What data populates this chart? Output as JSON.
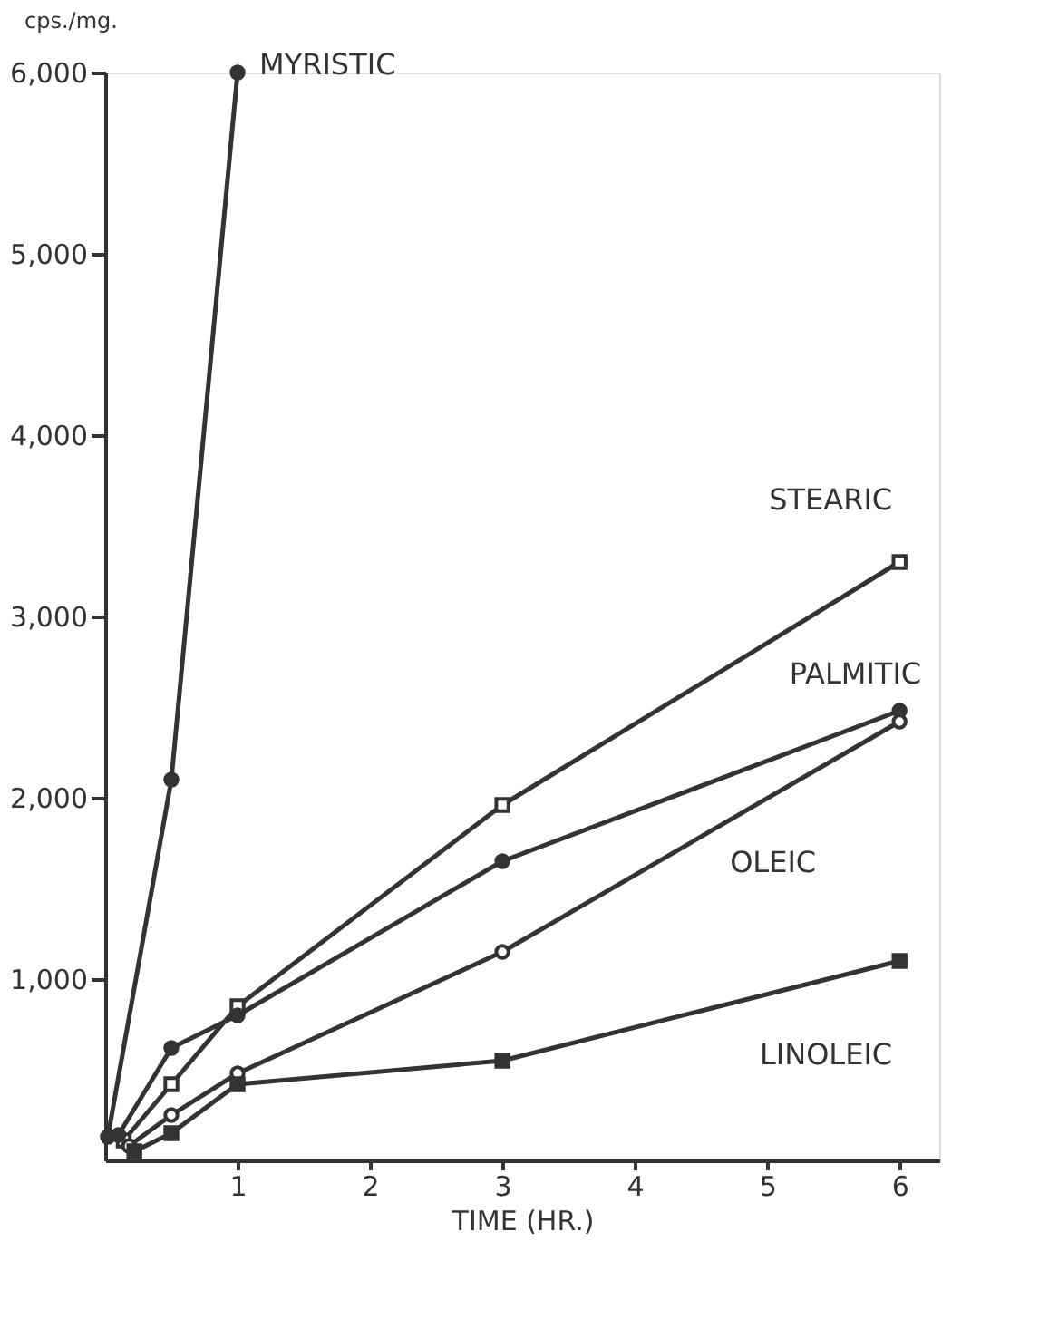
{
  "chart_data": {
    "type": "line",
    "xlabel": "TIME  (HR.)",
    "ylabel": "cps./mg.",
    "xlim": [
      0,
      6.3
    ],
    "xticks": [
      1,
      2,
      3,
      4,
      5,
      6
    ],
    "ylim": [
      0,
      6000
    ],
    "yticks": [
      {
        "value": 1000,
        "label": "1,000"
      },
      {
        "value": 2000,
        "label": "2,000"
      },
      {
        "value": 3000,
        "label": "3,000"
      },
      {
        "value": 4000,
        "label": "4,000"
      },
      {
        "value": 5000,
        "label": "5,000"
      },
      {
        "value": 6000,
        "label": "6,000"
      }
    ],
    "grid": false,
    "line_style": "solid",
    "series": [
      {
        "name": "MYRISTIC",
        "color": "#333333",
        "marker": "circle",
        "x": [
          0.02,
          0.5,
          1
        ],
        "values": [
          130,
          2100,
          6000
        ]
      },
      {
        "name": "STEARIC",
        "color": "#333333",
        "marker": "square",
        "x": [
          0.14,
          0.5,
          1,
          3,
          6
        ],
        "values": [
          110,
          420,
          850,
          1960,
          3300
        ]
      },
      {
        "name": "PALMITIC",
        "color": "#333333",
        "marker": "circle",
        "x": [
          0.1,
          0.5,
          1,
          3,
          6
        ],
        "values": [
          140,
          620,
          800,
          1650,
          2480
        ]
      },
      {
        "name": "OLEIC",
        "color": "#333333",
        "marker": "circle",
        "x": [
          0.18,
          0.5,
          1,
          3,
          6
        ],
        "values": [
          80,
          250,
          480,
          1150,
          2420
        ]
      },
      {
        "name": "LINOLEIC",
        "color": "#333333",
        "marker": "square",
        "x": [
          0.22,
          0.5,
          1,
          3,
          6
        ],
        "values": [
          50,
          150,
          420,
          550,
          1100
        ]
      }
    ]
  }
}
